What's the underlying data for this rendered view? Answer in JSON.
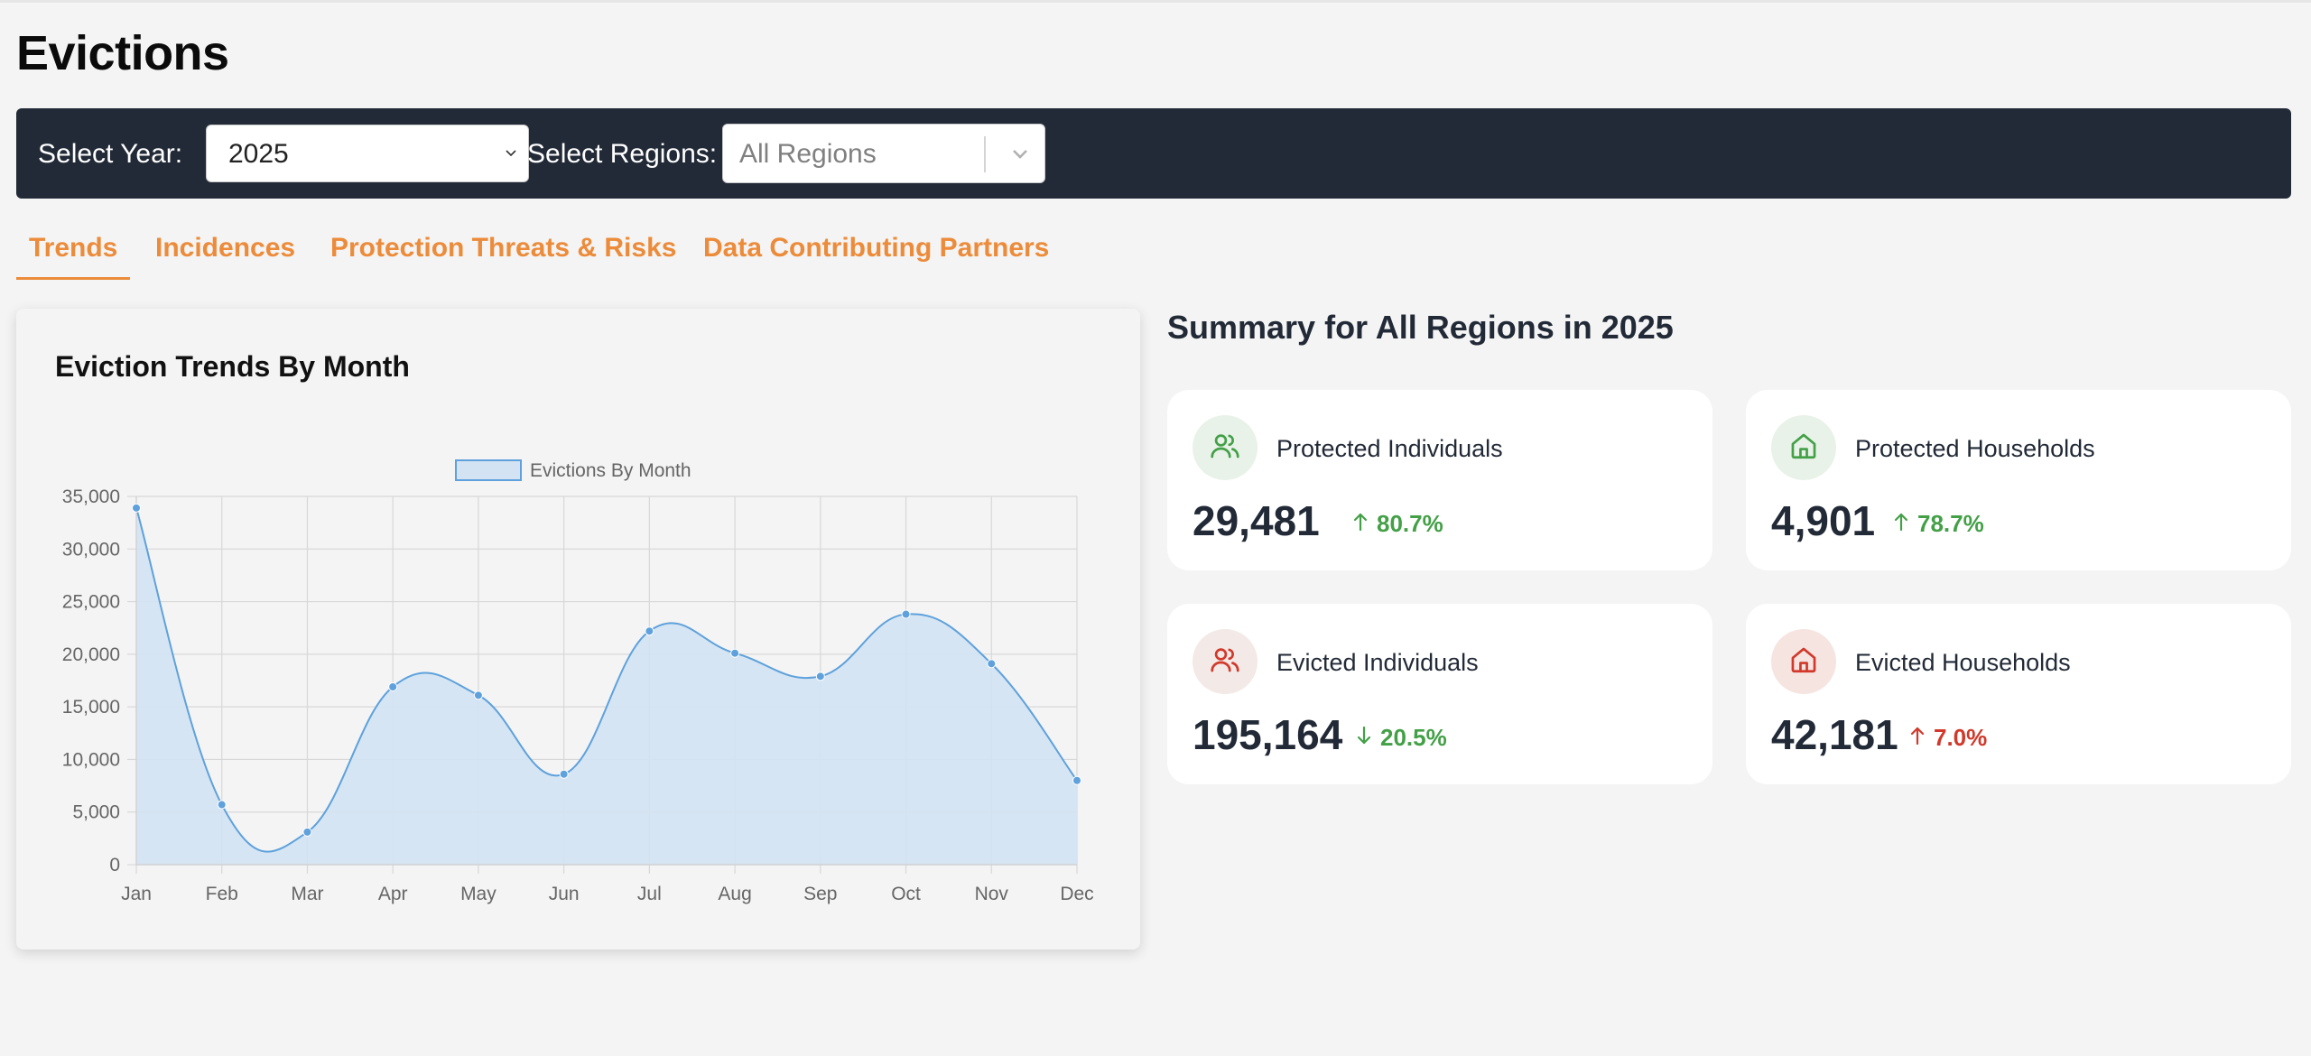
{
  "page": {
    "title": "Evictions"
  },
  "filters": {
    "year_label": "Select Year:",
    "year_value": "2025",
    "regions_label": "Select Regions:",
    "regions_placeholder": "All Regions"
  },
  "tabs": [
    {
      "label": "Trends",
      "active": true
    },
    {
      "label": "Incidences",
      "active": false
    },
    {
      "label": "Protection Threats & Risks",
      "active": false
    },
    {
      "label": "Data Contributing Partners",
      "active": false
    }
  ],
  "chart_card": {
    "title": "Eviction Trends By Month"
  },
  "chart_data": {
    "type": "area",
    "title": "Eviction Trends By Month",
    "categories": [
      "Jan",
      "Feb",
      "Mar",
      "Apr",
      "May",
      "Jun",
      "Jul",
      "Aug",
      "Sep",
      "Oct",
      "Nov",
      "Dec"
    ],
    "series": [
      {
        "name": "Evictions By Month",
        "values": [
          33900,
          5700,
          3100,
          16900,
          16100,
          8600,
          22200,
          20100,
          17900,
          23800,
          19100,
          8000
        ]
      }
    ],
    "ylim": [
      0,
      35000
    ],
    "yticks": [
      "35,000",
      "30,000",
      "25,000",
      "20,000",
      "15,000",
      "10,000",
      "5,000",
      "0"
    ],
    "xlabel": "",
    "ylabel": "",
    "legend": "top-center",
    "grid": true,
    "colors": {
      "line": "#5ea1dc",
      "fill": "#d3e3f3",
      "grid": "#d8d8d8",
      "axis_text": "#666666"
    }
  },
  "summary": {
    "title": "Summary for All Regions in 2025",
    "cards": [
      {
        "label": "Protected Individuals",
        "value": "29,481",
        "change": "80.7%",
        "direction": "up",
        "icon": "users-icon",
        "tone": "positive",
        "icon_color": "#43a047",
        "icon_bg": "#e8f2e8",
        "change_color": "#43a047"
      },
      {
        "label": "Protected Households",
        "value": "4,901",
        "change": "78.7%",
        "direction": "up",
        "icon": "home-icon",
        "tone": "positive",
        "icon_color": "#43a047",
        "icon_bg": "#e8f2e8",
        "change_color": "#43a047"
      },
      {
        "label": "Evicted Individuals",
        "value": "195,164",
        "change": "20.5%",
        "direction": "down",
        "icon": "users-icon",
        "tone": "negative",
        "icon_color": "#d0392b",
        "icon_bg": "#f3e9e6",
        "change_color": "#43a047"
      },
      {
        "label": "Evicted Households",
        "value": "42,181",
        "change": "7.0%",
        "direction": "up",
        "icon": "home-icon",
        "tone": "negative",
        "icon_color": "#d0392b",
        "icon_bg": "#f6e4e1",
        "change_color": "#d0392b"
      }
    ]
  }
}
